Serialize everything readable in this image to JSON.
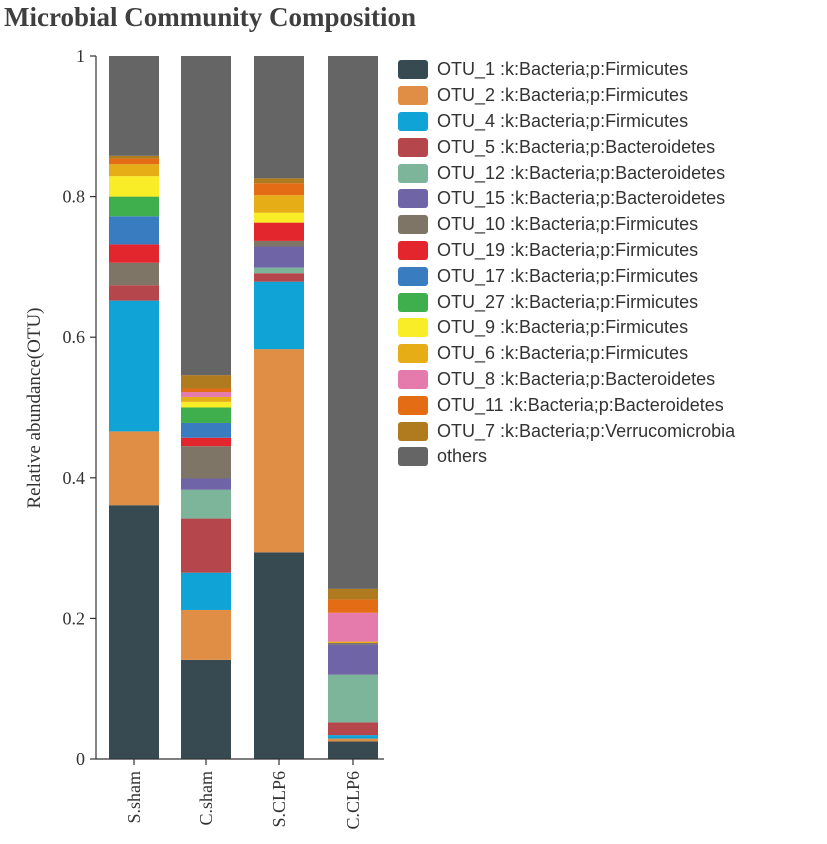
{
  "chart_data": {
    "type": "bar",
    "stacked": true,
    "title": "Microbial Community Composition",
    "xlabel": "",
    "ylabel": "Relative abundance(OTU)",
    "ylim": [
      0,
      1
    ],
    "yticks": [
      0,
      0.2,
      0.4,
      0.6,
      0.8,
      1
    ],
    "ytick_labels": [
      "0",
      "0.2",
      "0.4",
      "0.6",
      "0.8",
      "1"
    ],
    "categories": [
      "S.sham",
      "C.sham",
      "S.CLP6",
      "C.CLP6"
    ],
    "legend_position": "right",
    "series": [
      {
        "name": "OTU_1 :k:Bacteria;p:Firmicutes",
        "color": "#374a51",
        "values": [
          0.361,
          0.141,
          0.294,
          0.025
        ]
      },
      {
        "name": "OTU_2 :k:Bacteria;p:Firmicutes",
        "color": "#e08e45",
        "values": [
          0.105,
          0.071,
          0.289,
          0.004
        ]
      },
      {
        "name": "OTU_4 :k:Bacteria;p:Firmicutes",
        "color": "#0fa3d6",
        "values": [
          0.186,
          0.053,
          0.096,
          0.005
        ]
      },
      {
        "name": "OTU_5 :k:Bacteria;p:Bacteroidetes",
        "color": "#b5464b",
        "values": [
          0.022,
          0.077,
          0.012,
          0.018
        ]
      },
      {
        "name": "OTU_12 :k:Bacteria;p:Bacteroidetes",
        "color": "#7db59a",
        "values": [
          0.0,
          0.041,
          0.008,
          0.068
        ]
      },
      {
        "name": "OTU_15 :k:Bacteria;p:Bacteroidetes",
        "color": "#6f64a5",
        "values": [
          0.0,
          0.016,
          0.03,
          0.043
        ]
      },
      {
        "name": "OTU_10 :k:Bacteria;p:Firmicutes",
        "color": "#7f7567",
        "values": [
          0.032,
          0.046,
          0.008,
          0.002
        ]
      },
      {
        "name": "OTU_19 :k:Bacteria;p:Firmicutes",
        "color": "#e3262e",
        "values": [
          0.026,
          0.012,
          0.026,
          0.0
        ]
      },
      {
        "name": "OTU_17 :k:Bacteria;p:Firmicutes",
        "color": "#3a7cc0",
        "values": [
          0.04,
          0.021,
          0.0,
          0.0
        ]
      },
      {
        "name": "OTU_27 :k:Bacteria;p:Firmicutes",
        "color": "#3fae4c",
        "values": [
          0.028,
          0.022,
          0.0,
          0.0
        ]
      },
      {
        "name": "OTU_9 :k:Bacteria;p:Firmicutes",
        "color": "#f8ed26",
        "values": [
          0.029,
          0.008,
          0.014,
          0.0
        ]
      },
      {
        "name": "OTU_6 :k:Bacteria;p:Firmicutes",
        "color": "#e7ad16",
        "values": [
          0.017,
          0.007,
          0.025,
          0.002
        ]
      },
      {
        "name": "OTU_8 :k:Bacteria;p:Bacteroidetes",
        "color": "#e57aac",
        "values": [
          0.0,
          0.007,
          0.0,
          0.041
        ]
      },
      {
        "name": "OTU_11 :k:Bacteria;p:Bacteroidetes",
        "color": "#e46c15",
        "values": [
          0.008,
          0.005,
          0.017,
          0.019
        ]
      },
      {
        "name": "OTU_7 :k:Bacteria;p:Verrucomicrobia",
        "color": "#b07a1f",
        "values": [
          0.004,
          0.019,
          0.007,
          0.015
        ]
      },
      {
        "name": "others",
        "color": "#656565",
        "values": [
          0.142,
          0.454,
          0.174,
          0.758
        ]
      }
    ]
  }
}
